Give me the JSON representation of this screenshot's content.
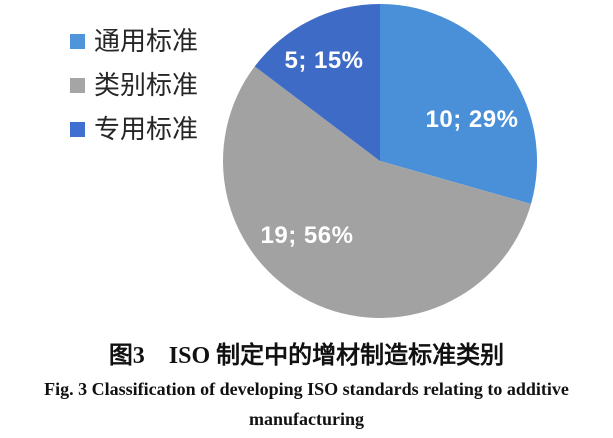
{
  "figure": {
    "background_color": "#ffffff"
  },
  "legend": {
    "position": "top-left",
    "items": [
      {
        "label": "通用标准",
        "color": "#4E95D9"
      },
      {
        "label": "类别标准",
        "color": "#A5A5A5"
      },
      {
        "label": "专用标准",
        "color": "#3E6FD1"
      }
    ]
  },
  "chart_data": {
    "type": "pie",
    "title": "",
    "categories": [
      "通用标准",
      "类别标准",
      "专用标准"
    ],
    "values": [
      10,
      19,
      5
    ],
    "percentages": [
      29,
      56,
      15
    ],
    "slice_labels": [
      "10; 29%",
      "19; 56%",
      "5; 15%"
    ],
    "colors": [
      "#4A90D8",
      "#A2A2A2",
      "#3E6BC5"
    ],
    "start_angle_deg": 0,
    "direction": "clockwise",
    "label_color": "#ffffff",
    "legend_position": "top-left",
    "grid": false
  },
  "captions": {
    "zh": "图3　ISO 制定中的增材制造标准类别",
    "en_line1": "Fig. 3   Classification of developing ISO standards relating to additive",
    "en_line2": "manufacturing"
  }
}
